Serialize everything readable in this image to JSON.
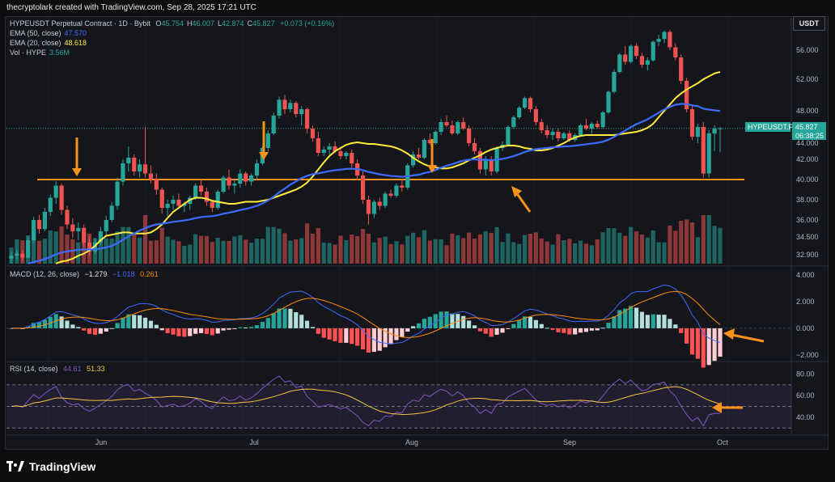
{
  "header": {
    "credit": "thecryptolark created with TradingView.com, Sep 28, 2025 17:21 UTC"
  },
  "currency": "USDT",
  "legend": {
    "symbol": "HYPEUSDT Perpetual Contract · 1D · Bybit",
    "ohlc": [
      {
        "k": "O",
        "v": "45.754"
      },
      {
        "k": "H",
        "v": "46.007"
      },
      {
        "k": "L",
        "v": "42.874"
      },
      {
        "k": "C",
        "v": "45.827"
      }
    ],
    "change": "+0.073 (+0.16%)",
    "ema50_label": "EMA (50, close)",
    "ema50_value": "47.570",
    "ema20_label": "EMA (20, close)",
    "ema20_value": "48.618",
    "vol_label": "Vol · HYPE",
    "vol_value": "3.56M",
    "macd_label": "MACD (12, 26, close)",
    "macd_v1": "−1.279",
    "macd_v2": "−1.018",
    "macd_v3": "0.261",
    "rsi_label": "RSI (14, close)",
    "rsi_v1": "44.61",
    "rsi_v2": "51.33"
  },
  "price_tag": {
    "symbol": "HYPEUSDT.P",
    "price": "45.827",
    "countdown": "06:38:25"
  },
  "footer": {
    "brand": "TradingView"
  },
  "colors": {
    "up": "#26a69a",
    "down": "#ef5350",
    "ema20": "#ffeb3b",
    "ema50": "#3d6bff",
    "orange": "#f7931a",
    "macd": "#4169ff",
    "signal": "#ff8c00",
    "rsi": "#7e57c2",
    "rsi_ma": "#f5c542"
  },
  "chart_data": [
    {
      "type": "candlestick",
      "title": "HYPEUSDT Perpetual Contract · 1D · Bybit",
      "price_axis_ticks": [
        "56.000",
        "52.000",
        "48.000",
        "44.000",
        "42.000",
        "40.000",
        "38.000",
        "36.000",
        "34.500",
        "32.900"
      ],
      "time_axis_ticks": [
        "Jun",
        "Jul",
        "Aug",
        "Sep",
        "Oct"
      ],
      "ylim": [
        32.0,
        59.0
      ],
      "support_level": 40.0,
      "candles": [
        [
          32.5,
          33.1,
          32.0,
          32.8
        ],
        [
          32.8,
          33.4,
          32.4,
          33.0
        ],
        [
          33.0,
          33.3,
          32.2,
          32.6
        ],
        [
          32.6,
          34.5,
          32.5,
          34.2
        ],
        [
          34.2,
          36.3,
          34.0,
          36.0
        ],
        [
          36.0,
          36.5,
          34.8,
          35.2
        ],
        [
          35.2,
          37.2,
          35.0,
          36.8
        ],
        [
          36.8,
          38.5,
          36.4,
          38.2
        ],
        [
          38.2,
          39.8,
          37.6,
          39.4
        ],
        [
          39.4,
          39.6,
          36.5,
          37.0
        ],
        [
          37.0,
          37.4,
          35.2,
          35.6
        ],
        [
          35.6,
          36.2,
          34.4,
          35.0
        ],
        [
          35.0,
          35.8,
          34.2,
          35.3
        ],
        [
          35.3,
          35.6,
          33.6,
          34.0
        ],
        [
          34.0,
          34.6,
          32.8,
          33.2
        ],
        [
          33.2,
          34.4,
          33.0,
          34.0
        ],
        [
          34.0,
          35.4,
          33.8,
          35.0
        ],
        [
          35.0,
          36.4,
          34.6,
          36.0
        ],
        [
          36.0,
          37.8,
          35.8,
          37.4
        ],
        [
          37.4,
          40.2,
          37.0,
          39.8
        ],
        [
          39.8,
          42.0,
          39.4,
          41.6
        ],
        [
          41.6,
          43.6,
          40.8,
          42.2
        ],
        [
          42.2,
          42.6,
          40.4,
          40.8
        ],
        [
          40.8,
          42.0,
          40.2,
          41.5
        ],
        [
          41.5,
          46.0,
          40.2,
          40.6
        ],
        [
          40.6,
          41.4,
          39.6,
          40.0
        ],
        [
          40.0,
          40.6,
          38.5,
          39.0
        ],
        [
          39.0,
          39.2,
          36.6,
          37.2
        ],
        [
          37.2,
          38.0,
          36.4,
          37.6
        ],
        [
          37.6,
          38.4,
          37.0,
          38.0
        ],
        [
          38.0,
          38.6,
          37.2,
          37.4
        ],
        [
          37.4,
          37.8,
          36.8,
          37.6
        ],
        [
          37.6,
          38.4,
          37.0,
          38.2
        ],
        [
          38.2,
          39.6,
          38.0,
          39.4
        ],
        [
          39.4,
          40.0,
          38.4,
          38.8
        ],
        [
          38.8,
          39.2,
          37.4,
          37.8
        ],
        [
          37.8,
          38.0,
          36.8,
          37.2
        ],
        [
          37.2,
          39.0,
          37.0,
          38.8
        ],
        [
          38.8,
          40.4,
          38.6,
          40.2
        ],
        [
          40.2,
          41.0,
          39.0,
          39.4
        ],
        [
          39.4,
          40.0,
          38.6,
          39.6
        ],
        [
          39.6,
          41.0,
          39.2,
          40.6
        ],
        [
          40.6,
          40.8,
          39.4,
          39.8
        ],
        [
          39.8,
          40.6,
          39.4,
          40.4
        ],
        [
          40.4,
          42.0,
          40.0,
          41.6
        ],
        [
          41.6,
          43.6,
          41.4,
          43.4
        ],
        [
          43.4,
          45.6,
          43.0,
          45.2
        ],
        [
          45.2,
          47.8,
          45.0,
          47.4
        ],
        [
          47.4,
          49.8,
          47.0,
          49.4
        ],
        [
          49.4,
          50.0,
          47.6,
          48.2
        ],
        [
          48.2,
          49.4,
          47.8,
          49.0
        ],
        [
          49.0,
          49.2,
          47.2,
          47.6
        ],
        [
          47.6,
          48.6,
          46.2,
          48.2
        ],
        [
          48.2,
          48.4,
          45.2,
          45.8
        ],
        [
          45.8,
          46.2,
          44.2,
          44.6
        ],
        [
          44.6,
          45.4,
          42.4,
          42.8
        ],
        [
          42.8,
          43.6,
          42.4,
          43.2
        ],
        [
          43.2,
          44.0,
          42.6,
          43.6
        ],
        [
          43.6,
          44.2,
          42.8,
          43.0
        ],
        [
          43.0,
          43.4,
          42.0,
          42.4
        ],
        [
          42.4,
          43.0,
          42.0,
          42.8
        ],
        [
          42.8,
          43.2,
          41.2,
          41.6
        ],
        [
          41.6,
          42.0,
          40.0,
          40.4
        ],
        [
          40.4,
          40.8,
          37.6,
          38.0
        ],
        [
          38.0,
          38.4,
          35.6,
          36.6
        ],
        [
          36.6,
          38.0,
          36.2,
          37.8
        ],
        [
          37.8,
          38.2,
          37.0,
          37.4
        ],
        [
          37.4,
          38.8,
          37.2,
          38.6
        ],
        [
          38.6,
          39.0,
          38.2,
          38.4
        ],
        [
          38.4,
          39.6,
          38.2,
          39.4
        ],
        [
          39.4,
          40.0,
          38.8,
          39.2
        ],
        [
          39.2,
          41.6,
          39.0,
          41.4
        ],
        [
          41.4,
          43.0,
          41.2,
          42.6
        ],
        [
          42.6,
          43.4,
          42.0,
          42.2
        ],
        [
          42.2,
          44.6,
          42.0,
          44.4
        ],
        [
          44.4,
          45.2,
          43.8,
          44.0
        ],
        [
          44.0,
          45.6,
          43.8,
          45.4
        ],
        [
          45.4,
          47.0,
          45.0,
          46.6
        ],
        [
          46.6,
          47.4,
          46.0,
          46.2
        ],
        [
          46.2,
          46.8,
          45.0,
          45.2
        ],
        [
          45.2,
          46.8,
          45.0,
          46.6
        ],
        [
          46.6,
          47.2,
          45.6,
          45.8
        ],
        [
          45.8,
          46.2,
          43.6,
          44.0
        ],
        [
          44.0,
          44.6,
          42.6,
          43.0
        ],
        [
          43.0,
          43.4,
          40.6,
          41.0
        ],
        [
          41.0,
          42.4,
          40.4,
          42.0
        ],
        [
          42.0,
          42.4,
          40.4,
          40.8
        ],
        [
          40.8,
          43.6,
          40.6,
          43.4
        ],
        [
          43.4,
          44.2,
          43.0,
          43.8
        ],
        [
          43.8,
          46.2,
          43.6,
          46.0
        ],
        [
          46.0,
          47.4,
          45.8,
          47.2
        ],
        [
          47.2,
          48.6,
          47.0,
          48.4
        ],
        [
          48.4,
          49.8,
          48.2,
          49.6
        ],
        [
          49.6,
          49.8,
          47.8,
          48.2
        ],
        [
          48.2,
          48.6,
          46.2,
          46.6
        ],
        [
          46.6,
          47.0,
          45.2,
          45.6
        ],
        [
          45.6,
          46.2,
          44.6,
          45.0
        ],
        [
          45.0,
          45.8,
          44.4,
          45.4
        ],
        [
          45.4,
          45.8,
          44.2,
          44.6
        ],
        [
          44.6,
          45.4,
          44.4,
          45.2
        ],
        [
          45.2,
          45.6,
          44.2,
          44.4
        ],
        [
          44.4,
          45.2,
          44.2,
          45.0
        ],
        [
          45.0,
          46.4,
          44.8,
          46.2
        ],
        [
          46.2,
          47.0,
          45.6,
          45.8
        ],
        [
          45.8,
          46.6,
          45.2,
          46.4
        ],
        [
          46.4,
          46.8,
          45.8,
          46.0
        ],
        [
          46.0,
          48.0,
          45.8,
          47.8
        ],
        [
          47.8,
          50.6,
          47.6,
          50.4
        ],
        [
          50.4,
          53.4,
          50.2,
          53.0
        ],
        [
          53.0,
          55.6,
          52.8,
          55.4
        ],
        [
          55.4,
          56.6,
          54.0,
          54.4
        ],
        [
          54.4,
          56.8,
          54.2,
          56.6
        ],
        [
          56.6,
          57.0,
          54.8,
          55.2
        ],
        [
          55.2,
          55.6,
          53.6,
          54.0
        ],
        [
          54.0,
          55.0,
          53.2,
          54.6
        ],
        [
          54.6,
          57.4,
          54.4,
          57.2
        ],
        [
          57.2,
          58.2,
          56.6,
          57.6
        ],
        [
          57.6,
          58.8,
          57.0,
          58.6
        ],
        [
          58.6,
          58.9,
          56.0,
          56.4
        ],
        [
          56.4,
          57.0,
          54.6,
          55.0
        ],
        [
          55.0,
          55.4,
          51.4,
          51.8
        ],
        [
          51.8,
          52.2,
          47.8,
          48.2
        ],
        [
          48.2,
          48.6,
          44.4,
          44.8
        ],
        [
          44.8,
          46.4,
          44.0,
          46.0
        ],
        [
          46.0,
          46.6,
          40.2,
          40.6
        ],
        [
          40.6,
          45.6,
          40.2,
          45.2
        ],
        [
          45.2,
          46.2,
          43.0,
          45.8
        ],
        [
          45.754,
          46.007,
          42.874,
          45.827
        ]
      ],
      "ema20": [
        32.0,
        32.2,
        32.3,
        32.5,
        32.8,
        33.0,
        33.3,
        33.7,
        34.2,
        34.6,
        34.7,
        34.8,
        34.9,
        34.9,
        34.8,
        34.8,
        34.8,
        34.9,
        35.2,
        35.6,
        36.2,
        36.8,
        37.2,
        37.6,
        38.0,
        38.2,
        38.2,
        38.1,
        37.9,
        37.8,
        37.7,
        37.6,
        37.6,
        37.7,
        37.8,
        37.8,
        37.8,
        37.9,
        38.0,
        38.2,
        38.4,
        38.6,
        38.8,
        39.0,
        39.3,
        39.7,
        40.3,
        41.0,
        41.7,
        42.4,
        43.0,
        43.4,
        43.8,
        44.0,
        44.1,
        44.0,
        43.9,
        43.9,
        43.8,
        43.7,
        43.6,
        43.4,
        43.1,
        42.7,
        42.2,
        41.8,
        41.5,
        41.3,
        41.2,
        41.1,
        41.1,
        41.2,
        41.4,
        41.6,
        41.9,
        42.2,
        42.5,
        42.9,
        43.2,
        43.4,
        43.6,
        43.7,
        43.7,
        43.6,
        43.4,
        43.3,
        43.1,
        43.1,
        43.2,
        43.4,
        43.7,
        44.0,
        44.4,
        44.7,
        44.9,
        45.0,
        45.0,
        45.0,
        45.0,
        45.0,
        45.0,
        45.1,
        45.2,
        45.3,
        45.4,
        45.6,
        45.9,
        46.4,
        47.2,
        48.0,
        48.8,
        49.6,
        50.2,
        50.7,
        51.1,
        51.5,
        52.0,
        52.4,
        52.8,
        53.0,
        53.0,
        52.7,
        52.2,
        51.7,
        51.0,
        50.4,
        49.8,
        49.2,
        48.6
      ]
    },
    {
      "type": "bar",
      "title": "Vol · HYPE",
      "last_value": "3.56M"
    },
    {
      "type": "line",
      "title": "MACD (12, 26, close)",
      "axis_ticks": [
        "4.000",
        "2.000",
        "0.000",
        "−2.000"
      ],
      "ylim": [
        -2.5,
        4.5
      ]
    },
    {
      "type": "line",
      "title": "RSI (14, close)",
      "axis_ticks": [
        "80.00",
        "60.00",
        "40.00"
      ],
      "ylim": [
        25,
        90
      ],
      "bands": [
        70,
        50,
        30
      ]
    }
  ]
}
